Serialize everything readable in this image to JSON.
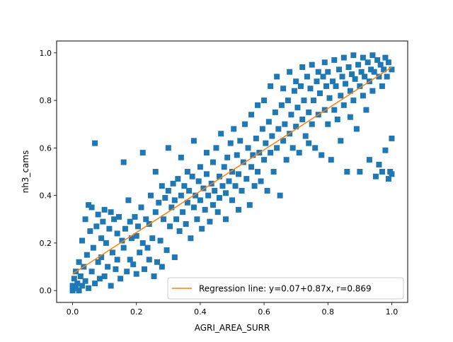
{
  "chart_data": {
    "type": "scatter",
    "xlabel": "AGRI_AREA_SURR",
    "ylabel": "nh3_cams",
    "xlim": [
      -0.05,
      1.05
    ],
    "ylim": [
      -0.05,
      1.05
    ],
    "x_ticks": [
      0.0,
      0.2,
      0.4,
      0.6,
      0.8,
      1.0
    ],
    "y_ticks": [
      0.0,
      0.2,
      0.4,
      0.6,
      0.8,
      1.0
    ],
    "x_tick_labels": [
      "0.0",
      "0.2",
      "0.4",
      "0.6",
      "0.8",
      "1.0"
    ],
    "y_tick_labels": [
      "0.0",
      "0.2",
      "0.4",
      "0.6",
      "0.8",
      "1.0"
    ],
    "grid": false,
    "legend_position": "bottom-right",
    "scatter": {
      "marker": "square",
      "color": "#1f77b4",
      "points": [
        [
          0.0,
          0.0
        ],
        [
          0.0,
          0.02
        ],
        [
          0.005,
          0.05
        ],
        [
          0.01,
          0.08
        ],
        [
          0.01,
          0.01
        ],
        [
          0.015,
          0.03
        ],
        [
          0.02,
          0.0
        ],
        [
          0.02,
          0.12
        ],
        [
          0.025,
          0.06
        ],
        [
          0.03,
          0.21
        ],
        [
          0.03,
          0.02
        ],
        [
          0.035,
          0.1
        ],
        [
          0.04,
          0.04
        ],
        [
          0.04,
          0.3
        ],
        [
          0.045,
          0.15
        ],
        [
          0.05,
          0.36
        ],
        [
          0.05,
          0.01
        ],
        [
          0.055,
          0.25
        ],
        [
          0.06,
          0.08
        ],
        [
          0.06,
          0.35
        ],
        [
          0.065,
          0.18
        ],
        [
          0.07,
          0.03
        ],
        [
          0.07,
          0.62
        ],
        [
          0.075,
          0.27
        ],
        [
          0.08,
          0.12
        ],
        [
          0.08,
          0.32
        ],
        [
          0.085,
          0.05
        ],
        [
          0.09,
          0.22
        ],
        [
          0.09,
          0.14
        ],
        [
          0.095,
          0.29
        ],
        [
          0.1,
          0.06
        ],
        [
          0.1,
          0.34
        ],
        [
          0.105,
          0.2
        ],
        [
          0.11,
          0.1
        ],
        [
          0.115,
          0.26
        ],
        [
          0.12,
          0.02
        ],
        [
          0.12,
          0.33
        ],
        [
          0.125,
          0.16
        ],
        [
          0.13,
          0.3
        ],
        [
          0.135,
          0.09
        ],
        [
          0.14,
          0.24
        ],
        [
          0.14,
          0.13
        ],
        [
          0.145,
          0.31
        ],
        [
          0.15,
          0.05
        ],
        [
          0.155,
          0.21
        ],
        [
          0.16,
          0.54
        ],
        [
          0.16,
          0.18
        ],
        [
          0.165,
          0.26
        ],
        [
          0.17,
          0.08
        ],
        [
          0.175,
          0.38
        ],
        [
          0.18,
          0.13
        ],
        [
          0.18,
          0.29
        ],
        [
          0.185,
          0.22
        ],
        [
          0.19,
          0.11
        ],
        [
          0.195,
          0.31
        ],
        [
          0.2,
          0.23
        ],
        [
          0.2,
          0.07
        ],
        [
          0.205,
          0.27
        ],
        [
          0.21,
          0.16
        ],
        [
          0.215,
          0.35
        ],
        [
          0.22,
          0.2
        ],
        [
          0.22,
          0.58
        ],
        [
          0.225,
          0.09
        ],
        [
          0.23,
          0.3
        ],
        [
          0.235,
          0.18
        ],
        [
          0.24,
          0.28
        ],
        [
          0.24,
          0.13
        ],
        [
          0.245,
          0.4
        ],
        [
          0.25,
          0.22
        ],
        [
          0.255,
          0.06
        ],
        [
          0.26,
          0.33
        ],
        [
          0.26,
          0.5
        ],
        [
          0.265,
          0.12
        ],
        [
          0.27,
          0.37
        ],
        [
          0.275,
          0.21
        ],
        [
          0.28,
          0.44
        ],
        [
          0.28,
          0.1
        ],
        [
          0.285,
          0.3
        ],
        [
          0.29,
          0.39
        ],
        [
          0.295,
          0.17
        ],
        [
          0.3,
          0.42
        ],
        [
          0.3,
          0.6
        ],
        [
          0.305,
          0.27
        ],
        [
          0.31,
          0.35
        ],
        [
          0.315,
          0.45
        ],
        [
          0.32,
          0.14
        ],
        [
          0.32,
          0.38
        ],
        [
          0.325,
          0.3
        ],
        [
          0.33,
          0.47
        ],
        [
          0.335,
          0.25
        ],
        [
          0.34,
          0.4
        ],
        [
          0.34,
          0.56
        ],
        [
          0.345,
          0.33
        ],
        [
          0.35,
          0.44
        ],
        [
          0.355,
          0.28
        ],
        [
          0.36,
          0.5
        ],
        [
          0.36,
          0.37
        ],
        [
          0.365,
          0.42
        ],
        [
          0.37,
          0.22
        ],
        [
          0.375,
          0.48
        ],
        [
          0.38,
          0.35
        ],
        [
          0.38,
          0.63
        ],
        [
          0.385,
          0.4
        ],
        [
          0.39,
          0.3
        ],
        [
          0.395,
          0.46
        ],
        [
          0.4,
          0.38
        ],
        [
          0.4,
          0.52
        ],
        [
          0.405,
          0.26
        ],
        [
          0.41,
          0.43
        ],
        [
          0.415,
          0.34
        ],
        [
          0.42,
          0.49
        ],
        [
          0.42,
          0.58
        ],
        [
          0.425,
          0.4
        ],
        [
          0.43,
          0.29
        ],
        [
          0.435,
          0.45
        ],
        [
          0.44,
          0.36
        ],
        [
          0.44,
          0.54
        ],
        [
          0.445,
          0.42
        ],
        [
          0.45,
          0.6
        ],
        [
          0.455,
          0.33
        ],
        [
          0.46,
          0.48
        ],
        [
          0.46,
          0.39
        ],
        [
          0.465,
          0.66
        ],
        [
          0.47,
          0.44
        ],
        [
          0.475,
          0.52
        ],
        [
          0.48,
          0.3
        ],
        [
          0.48,
          0.41
        ],
        [
          0.485,
          0.56
        ],
        [
          0.49,
          0.46
        ],
        [
          0.495,
          0.62
        ],
        [
          0.5,
          0.38
        ],
        [
          0.5,
          0.5
        ],
        [
          0.505,
          0.68
        ],
        [
          0.51,
          0.44
        ],
        [
          0.515,
          0.57
        ],
        [
          0.52,
          0.34
        ],
        [
          0.52,
          0.49
        ],
        [
          0.525,
          0.63
        ],
        [
          0.53,
          0.42
        ],
        [
          0.535,
          0.54
        ],
        [
          0.54,
          0.7
        ],
        [
          0.545,
          0.47
        ],
        [
          0.55,
          0.6
        ],
        [
          0.555,
          0.36
        ],
        [
          0.56,
          0.52
        ],
        [
          0.56,
          0.74
        ],
        [
          0.565,
          0.57
        ],
        [
          0.57,
          0.44
        ],
        [
          0.575,
          0.64
        ],
        [
          0.58,
          0.5
        ],
        [
          0.58,
          0.78
        ],
        [
          0.585,
          0.58
        ],
        [
          0.59,
          0.46
        ],
        [
          0.595,
          0.68
        ],
        [
          0.6,
          0.55
        ],
        [
          0.6,
          0.8
        ],
        [
          0.605,
          0.62
        ],
        [
          0.61,
          0.42
        ],
        [
          0.615,
          0.71
        ],
        [
          0.62,
          0.58
        ],
        [
          0.62,
          0.86
        ],
        [
          0.625,
          0.65
        ],
        [
          0.63,
          0.5
        ],
        [
          0.635,
          0.75
        ],
        [
          0.64,
          0.6
        ],
        [
          0.64,
          0.9
        ],
        [
          0.645,
          0.68
        ],
        [
          0.65,
          0.4
        ],
        [
          0.655,
          0.78
        ],
        [
          0.66,
          0.63
        ],
        [
          0.66,
          0.85
        ],
        [
          0.665,
          0.7
        ],
        [
          0.67,
          0.55
        ],
        [
          0.675,
          0.8
        ],
        [
          0.68,
          0.66
        ],
        [
          0.68,
          0.92
        ],
        [
          0.685,
          0.74
        ],
        [
          0.69,
          0.6
        ],
        [
          0.695,
          0.84
        ],
        [
          0.7,
          0.69
        ],
        [
          0.7,
          0.88
        ],
        [
          0.705,
          0.77
        ],
        [
          0.71,
          0.58
        ],
        [
          0.715,
          0.86
        ],
        [
          0.72,
          0.72
        ],
        [
          0.72,
          0.94
        ],
        [
          0.725,
          0.8
        ],
        [
          0.73,
          0.65
        ],
        [
          0.735,
          0.9
        ],
        [
          0.74,
          0.75
        ],
        [
          0.74,
          0.62
        ],
        [
          0.745,
          0.85
        ],
        [
          0.75,
          0.7
        ],
        [
          0.75,
          0.95
        ],
        [
          0.755,
          0.8
        ],
        [
          0.76,
          0.6
        ],
        [
          0.765,
          0.88
        ],
        [
          0.77,
          0.74
        ],
        [
          0.77,
          0.92
        ],
        [
          0.775,
          0.83
        ],
        [
          0.78,
          0.57
        ],
        [
          0.785,
          0.9
        ],
        [
          0.79,
          0.76
        ],
        [
          0.79,
          0.96
        ],
        [
          0.795,
          0.86
        ],
        [
          0.8,
          0.7
        ],
        [
          0.8,
          0.92
        ],
        [
          0.805,
          0.81
        ],
        [
          0.81,
          0.55
        ],
        [
          0.815,
          0.88
        ],
        [
          0.82,
          0.76
        ],
        [
          0.82,
          0.97
        ],
        [
          0.825,
          0.86
        ],
        [
          0.83,
          0.72
        ],
        [
          0.835,
          0.93
        ],
        [
          0.84,
          0.82
        ],
        [
          0.84,
          0.63
        ],
        [
          0.845,
          0.9
        ],
        [
          0.85,
          0.78
        ],
        [
          0.85,
          0.98
        ],
        [
          0.855,
          0.87
        ],
        [
          0.86,
          0.5
        ],
        [
          0.865,
          0.94
        ],
        [
          0.87,
          0.84
        ],
        [
          0.87,
          0.73
        ],
        [
          0.875,
          0.91
        ],
        [
          0.88,
          0.8
        ],
        [
          0.88,
          0.99
        ],
        [
          0.885,
          0.89
        ],
        [
          0.89,
          0.68
        ],
        [
          0.895,
          0.95
        ],
        [
          0.9,
          0.86
        ],
        [
          0.9,
          0.5
        ],
        [
          0.905,
          0.92
        ],
        [
          0.91,
          0.82
        ],
        [
          0.91,
          0.98
        ],
        [
          0.915,
          0.9
        ],
        [
          0.92,
          0.76
        ],
        [
          0.925,
          0.96
        ],
        [
          0.93,
          0.88
        ],
        [
          0.93,
          0.55
        ],
        [
          0.935,
          0.93
        ],
        [
          0.94,
          0.84
        ],
        [
          0.94,
          0.99
        ],
        [
          0.945,
          0.92
        ],
        [
          0.95,
          0.48
        ],
        [
          0.955,
          0.97
        ],
        [
          0.96,
          0.9
        ],
        [
          0.96,
          0.53
        ],
        [
          0.965,
          0.95
        ],
        [
          0.97,
          0.86
        ],
        [
          0.97,
          0.5
        ],
        [
          0.975,
          0.93
        ],
        [
          0.98,
          0.59
        ],
        [
          0.98,
          0.98
        ],
        [
          0.985,
          0.9
        ],
        [
          0.99,
          0.47
        ],
        [
          0.99,
          0.96
        ],
        [
          0.995,
          0.5
        ],
        [
          1.0,
          0.64
        ],
        [
          1.0,
          0.93
        ],
        [
          1.0,
          0.49
        ]
      ]
    },
    "regression": {
      "intercept": 0.07,
      "slope": 0.87,
      "x_range": [
        0.0,
        1.0
      ],
      "color": "#ff7f0e"
    },
    "legend": {
      "label": "Regression line: y=0.07+0.87x, r=0.869"
    }
  }
}
